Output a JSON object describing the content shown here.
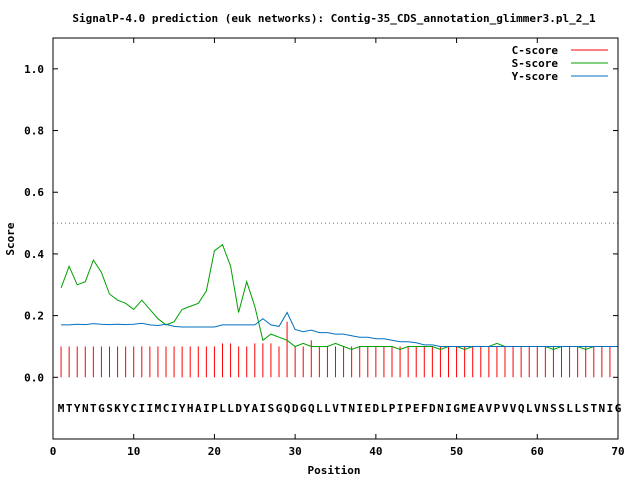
{
  "chart_data": {
    "type": "line",
    "title": "SignalP-4.0 prediction (euk networks): Contig-35_CDS_annotation_glimmer3.pl_2_1",
    "xlabel": "Position",
    "ylabel": "Score",
    "xlim": [
      0,
      70
    ],
    "ylim": [
      -0.2,
      1.1
    ],
    "x_ticks": [
      0,
      10,
      20,
      30,
      40,
      50,
      60,
      70
    ],
    "x_tick_labels": [
      "0",
      "10",
      "20",
      "30",
      "40",
      "50",
      "60",
      "70"
    ],
    "y_ticks": [
      0.0,
      0.2,
      0.4,
      0.6,
      0.8,
      1.0
    ],
    "y_tick_labels": [
      "0.0",
      "0.2",
      "0.4",
      "0.6",
      "0.8",
      "1.0"
    ],
    "threshold": 0.5,
    "threshold_color": "#ff00ff",
    "legend_position": "top-right",
    "sequence": "MTYNTGSKYCIIMCIYHAIPLLDYAISGQDGQLLVTNIEDLPIPEFDNIGMEAVPVVQLVNSSLLSTNIG",
    "sequence_y": -0.1,
    "series": [
      {
        "name": "C-score",
        "kind": "impulse",
        "color": "#ff0000",
        "x": [
          1,
          2,
          3,
          4,
          5,
          6,
          7,
          8,
          9,
          10,
          11,
          12,
          13,
          14,
          15,
          16,
          17,
          18,
          19,
          20,
          21,
          22,
          23,
          24,
          25,
          26,
          27,
          28,
          29,
          30,
          31,
          32,
          33,
          34,
          35,
          36,
          37,
          38,
          39,
          40,
          41,
          42,
          43,
          44,
          45,
          46,
          47,
          48,
          49,
          50,
          51,
          52,
          53,
          54,
          55,
          56,
          57,
          58,
          59,
          60,
          61,
          62,
          63,
          64,
          65,
          66,
          67,
          68,
          69
        ],
        "values": [
          0.1,
          0.1,
          0.1,
          0.1,
          0.1,
          0.1,
          0.1,
          0.1,
          0.1,
          0.1,
          0.1,
          0.1,
          0.1,
          0.1,
          0.1,
          0.1,
          0.1,
          0.1,
          0.1,
          0.1,
          0.11,
          0.11,
          0.1,
          0.1,
          0.11,
          0.11,
          0.11,
          0.1,
          0.18,
          0.1,
          0.1,
          0.12,
          0.1,
          0.1,
          0.1,
          0.1,
          0.1,
          0.1,
          0.1,
          0.1,
          0.1,
          0.1,
          0.1,
          0.1,
          0.1,
          0.1,
          0.1,
          0.1,
          0.1,
          0.1,
          0.1,
          0.1,
          0.1,
          0.1,
          0.1,
          0.1,
          0.1,
          0.1,
          0.1,
          0.1,
          0.1,
          0.1,
          0.1,
          0.1,
          0.1,
          0.1,
          0.1,
          0.1,
          0.1
        ]
      },
      {
        "name": "S-score",
        "kind": "line",
        "color": "#00a000",
        "x": [
          1,
          2,
          3,
          4,
          5,
          6,
          7,
          8,
          9,
          10,
          11,
          12,
          13,
          14,
          15,
          16,
          17,
          18,
          19,
          20,
          21,
          22,
          23,
          24,
          25,
          26,
          27,
          28,
          29,
          30,
          31,
          32,
          33,
          34,
          35,
          36,
          37,
          38,
          39,
          40,
          41,
          42,
          43,
          44,
          45,
          46,
          47,
          48,
          49,
          50,
          51,
          52,
          53,
          54,
          55,
          56,
          57,
          58,
          59,
          60,
          61,
          62,
          63,
          64,
          65,
          66,
          67,
          68,
          69,
          70
        ],
        "values": [
          0.29,
          0.36,
          0.3,
          0.31,
          0.38,
          0.34,
          0.27,
          0.25,
          0.24,
          0.22,
          0.25,
          0.22,
          0.19,
          0.17,
          0.18,
          0.22,
          0.23,
          0.24,
          0.28,
          0.41,
          0.43,
          0.36,
          0.21,
          0.31,
          0.23,
          0.12,
          0.14,
          0.13,
          0.12,
          0.1,
          0.11,
          0.1,
          0.1,
          0.1,
          0.11,
          0.1,
          0.09,
          0.1,
          0.1,
          0.1,
          0.1,
          0.1,
          0.09,
          0.1,
          0.1,
          0.1,
          0.1,
          0.09,
          0.1,
          0.1,
          0.09,
          0.1,
          0.1,
          0.1,
          0.11,
          0.1,
          0.1,
          0.1,
          0.1,
          0.1,
          0.1,
          0.09,
          0.1,
          0.1,
          0.1,
          0.09,
          0.1,
          0.1,
          0.1,
          0.1
        ]
      },
      {
        "name": "Y-score",
        "kind": "line",
        "color": "#0070c0",
        "x": [
          1,
          2,
          3,
          4,
          5,
          6,
          7,
          8,
          9,
          10,
          11,
          12,
          13,
          14,
          15,
          16,
          17,
          18,
          19,
          20,
          21,
          22,
          23,
          24,
          25,
          26,
          27,
          28,
          29,
          30,
          31,
          32,
          33,
          34,
          35,
          36,
          37,
          38,
          39,
          40,
          41,
          42,
          43,
          44,
          45,
          46,
          47,
          48,
          49,
          50,
          51,
          52,
          53,
          54,
          55,
          56,
          57,
          58,
          59,
          60,
          61,
          62,
          63,
          64,
          65,
          66,
          67,
          68,
          69,
          70
        ],
        "values": [
          0.17,
          0.17,
          0.172,
          0.171,
          0.174,
          0.172,
          0.171,
          0.172,
          0.171,
          0.172,
          0.175,
          0.17,
          0.168,
          0.172,
          0.165,
          0.163,
          0.163,
          0.163,
          0.163,
          0.163,
          0.17,
          0.17,
          0.17,
          0.17,
          0.17,
          0.19,
          0.17,
          0.165,
          0.21,
          0.155,
          0.148,
          0.153,
          0.145,
          0.145,
          0.14,
          0.14,
          0.135,
          0.13,
          0.13,
          0.125,
          0.125,
          0.12,
          0.115,
          0.115,
          0.112,
          0.105,
          0.105,
          0.1,
          0.1,
          0.1,
          0.1,
          0.1,
          0.1,
          0.1,
          0.1,
          0.1,
          0.1,
          0.1,
          0.1,
          0.1,
          0.1,
          0.1,
          0.1,
          0.1,
          0.1,
          0.1,
          0.1,
          0.1,
          0.1,
          0.1
        ]
      }
    ]
  }
}
